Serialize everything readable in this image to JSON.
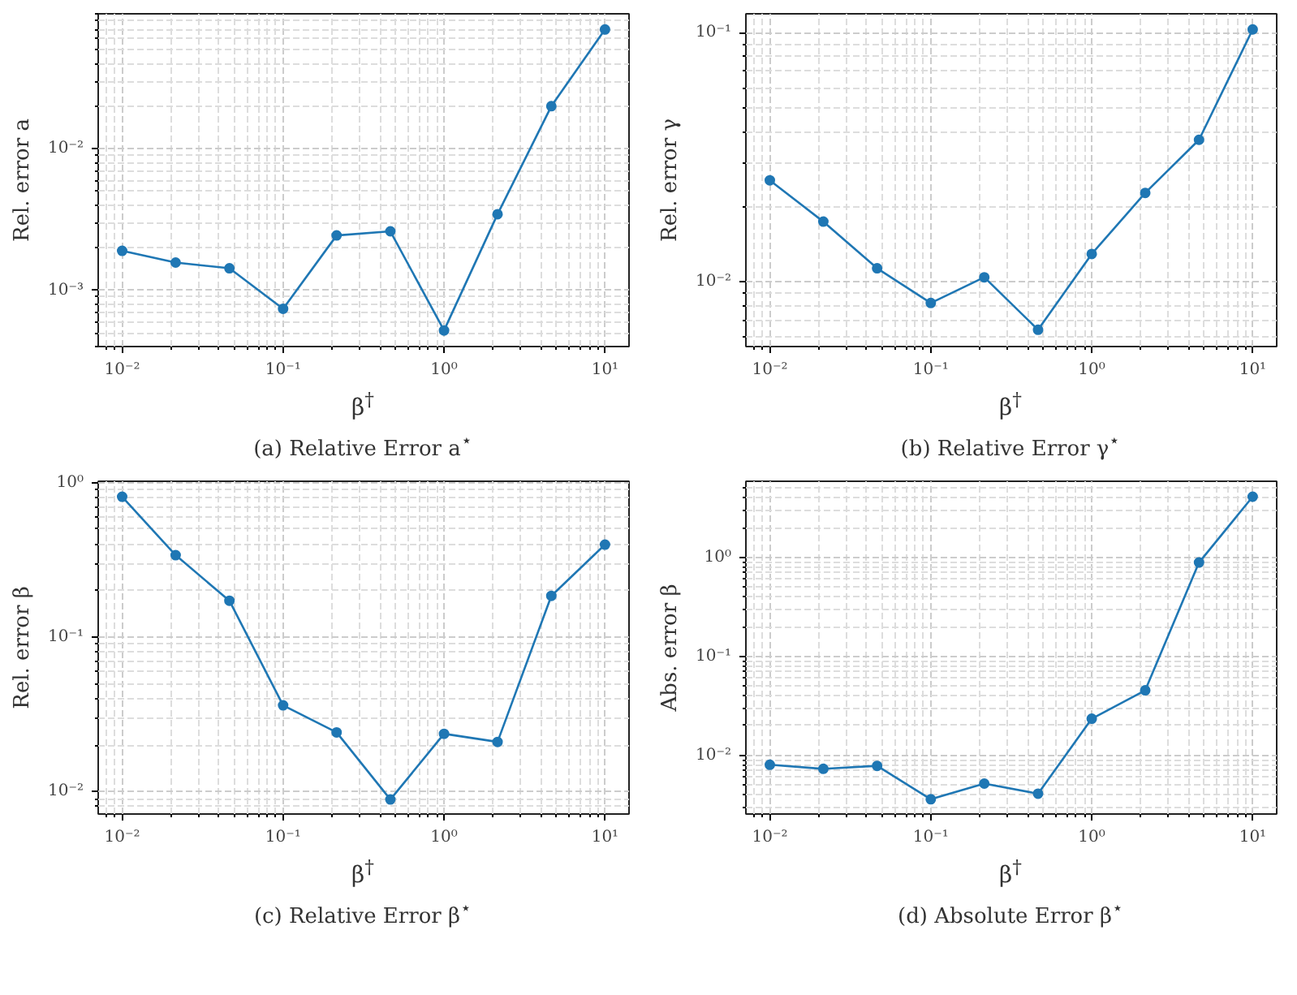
{
  "chart_data": [
    {
      "type": "line",
      "title": "(a) Relative Error a$^{⋆}$",
      "xlabel": "β$^{†}$",
      "ylabel": "Rel. error a",
      "log": "xy",
      "grid": true,
      "marker": "circle",
      "x": [
        0.01,
        0.0215,
        0.0464,
        0.1,
        0.215,
        0.464,
        1,
        2.15,
        4.64,
        10
      ],
      "series": [
        {
          "color": "#1f77b4",
          "values": [
            0.0019,
            0.00157,
            0.00143,
            0.00074,
            0.00244,
            0.00261,
            0.00052,
            0.00345,
            0.02,
            0.0697
          ]
        }
      ],
      "xlim": [
        0.0071,
        14.1
      ],
      "ylim": [
        0.0004,
        0.09
      ],
      "xticks": [
        {
          "value": 0.008,
          "label": null
        },
        {
          "value": 0.009,
          "label": null
        },
        {
          "value": 0.01,
          "label": "10⁻²"
        },
        {
          "value": 0.02,
          "label": null
        },
        {
          "value": 0.03,
          "label": null
        },
        {
          "value": 0.04,
          "label": null
        },
        {
          "value": 0.05,
          "label": null
        },
        {
          "value": 0.06,
          "label": null
        },
        {
          "value": 0.07,
          "label": null
        },
        {
          "value": 0.08,
          "label": null
        },
        {
          "value": 0.09,
          "label": null
        },
        {
          "value": 0.1,
          "label": "10⁻¹"
        },
        {
          "value": 0.2,
          "label": null
        },
        {
          "value": 0.3,
          "label": null
        },
        {
          "value": 0.4,
          "label": null
        },
        {
          "value": 0.5,
          "label": null
        },
        {
          "value": 0.6,
          "label": null
        },
        {
          "value": 0.7,
          "label": null
        },
        {
          "value": 0.8,
          "label": null
        },
        {
          "value": 0.9,
          "label": null
        },
        {
          "value": 1,
          "label": "10⁰"
        },
        {
          "value": 2,
          "label": null
        },
        {
          "value": 3,
          "label": null
        },
        {
          "value": 4,
          "label": null
        },
        {
          "value": 5,
          "label": null
        },
        {
          "value": 6,
          "label": null
        },
        {
          "value": 7,
          "label": null
        },
        {
          "value": 8,
          "label": null
        },
        {
          "value": 9,
          "label": null
        },
        {
          "value": 10,
          "label": "10¹"
        }
      ],
      "yticks": [
        {
          "value": 0.0004,
          "label": null
        },
        {
          "value": 0.0005,
          "label": null
        },
        {
          "value": 0.0006,
          "label": null
        },
        {
          "value": 0.0007,
          "label": null
        },
        {
          "value": 0.0008,
          "label": null
        },
        {
          "value": 0.0009,
          "label": null
        },
        {
          "value": 0.001,
          "label": "10⁻³"
        },
        {
          "value": 0.002,
          "label": null
        },
        {
          "value": 0.003,
          "label": null
        },
        {
          "value": 0.004,
          "label": null
        },
        {
          "value": 0.005,
          "label": null
        },
        {
          "value": 0.006,
          "label": null
        },
        {
          "value": 0.007,
          "label": null
        },
        {
          "value": 0.008,
          "label": null
        },
        {
          "value": 0.009,
          "label": null
        },
        {
          "value": 0.01,
          "label": "10⁻²"
        },
        {
          "value": 0.02,
          "label": null
        },
        {
          "value": 0.03,
          "label": null
        },
        {
          "value": 0.04,
          "label": null
        },
        {
          "value": 0.05,
          "label": null
        },
        {
          "value": 0.06,
          "label": null
        },
        {
          "value": 0.07,
          "label": null
        },
        {
          "value": 0.08,
          "label": null
        },
        {
          "value": 0.09,
          "label": null
        }
      ]
    },
    {
      "type": "line",
      "title": "(b) Relative Error γ$^{⋆}$",
      "xlabel": "β$^{†}$",
      "ylabel": "Rel. error γ",
      "log": "xy",
      "grid": true,
      "marker": "circle",
      "x": [
        0.01,
        0.0215,
        0.0464,
        0.1,
        0.215,
        0.464,
        1,
        2.15,
        4.64,
        10
      ],
      "series": [
        {
          "color": "#1f77b4",
          "values": [
            0.0255,
            0.0174,
            0.0113,
            0.0082,
            0.0104,
            0.0064,
            0.0129,
            0.0227,
            0.0371,
            0.103
          ]
        }
      ],
      "xlim": [
        0.0071,
        14.1
      ],
      "ylim": [
        0.00548,
        0.119
      ],
      "xticks": [
        {
          "value": 0.008,
          "label": null
        },
        {
          "value": 0.009,
          "label": null
        },
        {
          "value": 0.01,
          "label": "10⁻²"
        },
        {
          "value": 0.02,
          "label": null
        },
        {
          "value": 0.03,
          "label": null
        },
        {
          "value": 0.04,
          "label": null
        },
        {
          "value": 0.05,
          "label": null
        },
        {
          "value": 0.06,
          "label": null
        },
        {
          "value": 0.07,
          "label": null
        },
        {
          "value": 0.08,
          "label": null
        },
        {
          "value": 0.09,
          "label": null
        },
        {
          "value": 0.1,
          "label": "10⁻¹"
        },
        {
          "value": 0.2,
          "label": null
        },
        {
          "value": 0.3,
          "label": null
        },
        {
          "value": 0.4,
          "label": null
        },
        {
          "value": 0.5,
          "label": null
        },
        {
          "value": 0.6,
          "label": null
        },
        {
          "value": 0.7,
          "label": null
        },
        {
          "value": 0.8,
          "label": null
        },
        {
          "value": 0.9,
          "label": null
        },
        {
          "value": 1,
          "label": "10⁰"
        },
        {
          "value": 2,
          "label": null
        },
        {
          "value": 3,
          "label": null
        },
        {
          "value": 4,
          "label": null
        },
        {
          "value": 5,
          "label": null
        },
        {
          "value": 6,
          "label": null
        },
        {
          "value": 7,
          "label": null
        },
        {
          "value": 8,
          "label": null
        },
        {
          "value": 9,
          "label": null
        },
        {
          "value": 10,
          "label": "10¹"
        }
      ],
      "yticks": [
        {
          "value": 0.006,
          "label": null
        },
        {
          "value": 0.007,
          "label": null
        },
        {
          "value": 0.008,
          "label": null
        },
        {
          "value": 0.009,
          "label": null
        },
        {
          "value": 0.01,
          "label": "10⁻²"
        },
        {
          "value": 0.02,
          "label": null
        },
        {
          "value": 0.03,
          "label": null
        },
        {
          "value": 0.04,
          "label": null
        },
        {
          "value": 0.05,
          "label": null
        },
        {
          "value": 0.06,
          "label": null
        },
        {
          "value": 0.07,
          "label": null
        },
        {
          "value": 0.08,
          "label": null
        },
        {
          "value": 0.09,
          "label": null
        },
        {
          "value": 0.1,
          "label": "10⁻¹"
        }
      ]
    },
    {
      "type": "line",
      "title": "(c) Relative Error β$^{⋆}$",
      "xlabel": "β$^{†}$",
      "ylabel": "Rel. error β",
      "log": "xy",
      "grid": true,
      "marker": "circle",
      "x": [
        0.01,
        0.0215,
        0.0464,
        0.1,
        0.215,
        0.464,
        1,
        2.15,
        4.64,
        10
      ],
      "series": [
        {
          "color": "#1f77b4",
          "values": [
            0.81,
            0.339,
            0.172,
            0.0362,
            0.0242,
            0.0089,
            0.0237,
            0.021,
            0.185,
            0.397
          ]
        }
      ],
      "xlim": [
        0.0071,
        14.1
      ],
      "ylim": [
        0.00717,
        1.02
      ],
      "xticks": [
        {
          "value": 0.008,
          "label": null
        },
        {
          "value": 0.009,
          "label": null
        },
        {
          "value": 0.01,
          "label": "10⁻²"
        },
        {
          "value": 0.02,
          "label": null
        },
        {
          "value": 0.03,
          "label": null
        },
        {
          "value": 0.04,
          "label": null
        },
        {
          "value": 0.05,
          "label": null
        },
        {
          "value": 0.06,
          "label": null
        },
        {
          "value": 0.07,
          "label": null
        },
        {
          "value": 0.08,
          "label": null
        },
        {
          "value": 0.09,
          "label": null
        },
        {
          "value": 0.1,
          "label": "10⁻¹"
        },
        {
          "value": 0.2,
          "label": null
        },
        {
          "value": 0.3,
          "label": null
        },
        {
          "value": 0.4,
          "label": null
        },
        {
          "value": 0.5,
          "label": null
        },
        {
          "value": 0.6,
          "label": null
        },
        {
          "value": 0.7,
          "label": null
        },
        {
          "value": 0.8,
          "label": null
        },
        {
          "value": 0.9,
          "label": null
        },
        {
          "value": 1,
          "label": "10⁰"
        },
        {
          "value": 2,
          "label": null
        },
        {
          "value": 3,
          "label": null
        },
        {
          "value": 4,
          "label": null
        },
        {
          "value": 5,
          "label": null
        },
        {
          "value": 6,
          "label": null
        },
        {
          "value": 7,
          "label": null
        },
        {
          "value": 8,
          "label": null
        },
        {
          "value": 9,
          "label": null
        },
        {
          "value": 10,
          "label": "10¹"
        }
      ],
      "yticks": [
        {
          "value": 0.008,
          "label": null
        },
        {
          "value": 0.009,
          "label": null
        },
        {
          "value": 0.01,
          "label": "10⁻²"
        },
        {
          "value": 0.02,
          "label": null
        },
        {
          "value": 0.03,
          "label": null
        },
        {
          "value": 0.04,
          "label": null
        },
        {
          "value": 0.05,
          "label": null
        },
        {
          "value": 0.06,
          "label": null
        },
        {
          "value": 0.07,
          "label": null
        },
        {
          "value": 0.08,
          "label": null
        },
        {
          "value": 0.09,
          "label": null
        },
        {
          "value": 0.1,
          "label": "10⁻¹"
        },
        {
          "value": 0.2,
          "label": null
        },
        {
          "value": 0.3,
          "label": null
        },
        {
          "value": 0.4,
          "label": null
        },
        {
          "value": 0.5,
          "label": null
        },
        {
          "value": 0.6,
          "label": null
        },
        {
          "value": 0.7,
          "label": null
        },
        {
          "value": 0.8,
          "label": null
        },
        {
          "value": 0.9,
          "label": null
        },
        {
          "value": 1,
          "label": "10⁰"
        }
      ]
    },
    {
      "type": "line",
      "title": "(d) Absolute Error β$^{⋆}$",
      "xlabel": "β$^{†}$",
      "ylabel": "Abs. error β",
      "log": "xy",
      "grid": true,
      "marker": "circle",
      "x": [
        0.01,
        0.0215,
        0.0464,
        0.1,
        0.215,
        0.464,
        1,
        2.15,
        4.64,
        10
      ],
      "series": [
        {
          "color": "#1f77b4",
          "values": [
            0.008,
            0.00727,
            0.0078,
            0.00358,
            0.00516,
            0.00408,
            0.0234,
            0.0453,
            0.89,
            4.12
          ]
        }
      ],
      "xlim": [
        0.0071,
        14.1
      ],
      "ylim": [
        0.00254,
        5.9
      ],
      "xticks": [
        {
          "value": 0.008,
          "label": null
        },
        {
          "value": 0.009,
          "label": null
        },
        {
          "value": 0.01,
          "label": "10⁻²"
        },
        {
          "value": 0.02,
          "label": null
        },
        {
          "value": 0.03,
          "label": null
        },
        {
          "value": 0.04,
          "label": null
        },
        {
          "value": 0.05,
          "label": null
        },
        {
          "value": 0.06,
          "label": null
        },
        {
          "value": 0.07,
          "label": null
        },
        {
          "value": 0.08,
          "label": null
        },
        {
          "value": 0.09,
          "label": null
        },
        {
          "value": 0.1,
          "label": "10⁻¹"
        },
        {
          "value": 0.2,
          "label": null
        },
        {
          "value": 0.3,
          "label": null
        },
        {
          "value": 0.4,
          "label": null
        },
        {
          "value": 0.5,
          "label": null
        },
        {
          "value": 0.6,
          "label": null
        },
        {
          "value": 0.7,
          "label": null
        },
        {
          "value": 0.8,
          "label": null
        },
        {
          "value": 0.9,
          "label": null
        },
        {
          "value": 1,
          "label": "10⁰"
        },
        {
          "value": 2,
          "label": null
        },
        {
          "value": 3,
          "label": null
        },
        {
          "value": 4,
          "label": null
        },
        {
          "value": 5,
          "label": null
        },
        {
          "value": 6,
          "label": null
        },
        {
          "value": 7,
          "label": null
        },
        {
          "value": 8,
          "label": null
        },
        {
          "value": 9,
          "label": null
        },
        {
          "value": 10,
          "label": "10¹"
        }
      ],
      "yticks": [
        {
          "value": 0.003,
          "label": null
        },
        {
          "value": 0.004,
          "label": null
        },
        {
          "value": 0.005,
          "label": null
        },
        {
          "value": 0.006,
          "label": null
        },
        {
          "value": 0.007,
          "label": null
        },
        {
          "value": 0.008,
          "label": null
        },
        {
          "value": 0.009,
          "label": null
        },
        {
          "value": 0.01,
          "label": "10⁻²"
        },
        {
          "value": 0.02,
          "label": null
        },
        {
          "value": 0.03,
          "label": null
        },
        {
          "value": 0.04,
          "label": null
        },
        {
          "value": 0.05,
          "label": null
        },
        {
          "value": 0.06,
          "label": null
        },
        {
          "value": 0.07,
          "label": null
        },
        {
          "value": 0.08,
          "label": null
        },
        {
          "value": 0.09,
          "label": null
        },
        {
          "value": 0.1,
          "label": "10⁻¹"
        },
        {
          "value": 0.2,
          "label": null
        },
        {
          "value": 0.3,
          "label": null
        },
        {
          "value": 0.4,
          "label": null
        },
        {
          "value": 0.5,
          "label": null
        },
        {
          "value": 0.6,
          "label": null
        },
        {
          "value": 0.7,
          "label": null
        },
        {
          "value": 0.8,
          "label": null
        },
        {
          "value": 0.9,
          "label": null
        },
        {
          "value": 1,
          "label": "10⁰"
        },
        {
          "value": 2,
          "label": null
        },
        {
          "value": 3,
          "label": null
        },
        {
          "value": 4,
          "label": null
        },
        {
          "value": 5,
          "label": null
        }
      ]
    }
  ]
}
